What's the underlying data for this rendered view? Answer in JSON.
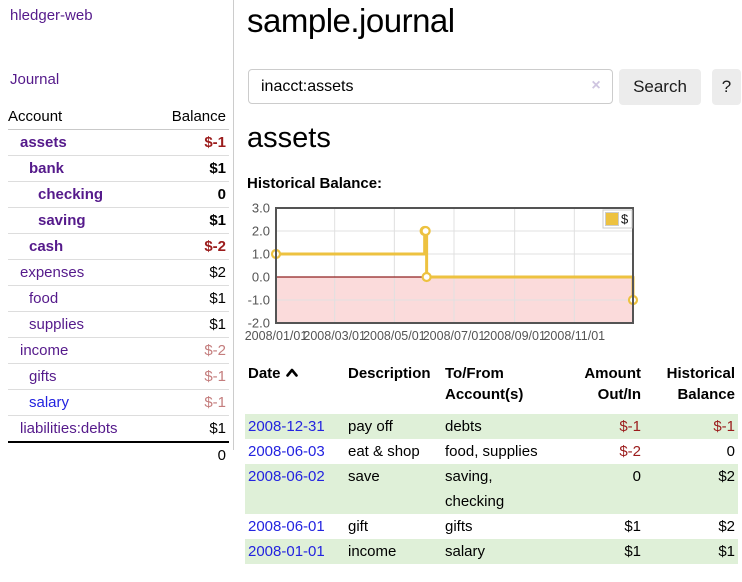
{
  "app": {
    "title": "hledger-web"
  },
  "sidebar": {
    "journal_label": "Journal",
    "table": {
      "account_header": "Account",
      "balance_header": "Balance",
      "rows": [
        {
          "name": "assets",
          "depth": 1,
          "bold": true,
          "balance": "$-1",
          "balance_style": "neg-strong"
        },
        {
          "name": "bank",
          "depth": 2,
          "bold": true,
          "balance": "$1",
          "balance_style": ""
        },
        {
          "name": "checking",
          "depth": 3,
          "bold": true,
          "balance": "0",
          "balance_style": ""
        },
        {
          "name": "saving",
          "depth": 3,
          "bold": true,
          "balance": "$1",
          "balance_style": ""
        },
        {
          "name": "cash",
          "depth": 2,
          "bold": true,
          "balance": "$-2",
          "balance_style": "neg-strong"
        },
        {
          "name": "expenses",
          "depth": 1,
          "bold": false,
          "balance": "$2",
          "balance_style": ""
        },
        {
          "name": "food",
          "depth": 2,
          "bold": false,
          "balance": "$1",
          "balance_style": ""
        },
        {
          "name": "supplies",
          "depth": 2,
          "bold": false,
          "balance": "$1",
          "balance_style": ""
        },
        {
          "name": "income",
          "depth": 1,
          "bold": false,
          "balance": "$-2",
          "balance_style": "neg-light"
        },
        {
          "name": "gifts",
          "depth": 2,
          "bold": false,
          "balance": "$-1",
          "balance_style": "neg-light"
        },
        {
          "name": "salary",
          "depth": 2,
          "bold": false,
          "blue": true,
          "balance": "$-1",
          "balance_style": "neg-light"
        },
        {
          "name": "liabilities:debts",
          "depth": 1,
          "bold": false,
          "balance": "$1",
          "balance_style": ""
        }
      ],
      "total": "0"
    }
  },
  "main": {
    "title": "sample.journal",
    "search": {
      "value": "inacct:assets",
      "clear_icon": "×",
      "button_label": "Search",
      "help_label": "?"
    },
    "account_heading": "assets"
  },
  "chart_data": {
    "type": "line",
    "title": "Historical Balance:",
    "step": true,
    "x_range": [
      "2008-01-01",
      "2008-12-31"
    ],
    "ylim": [
      -2.0,
      3.0
    ],
    "grid": true,
    "legend": {
      "position": "top-right"
    },
    "series": [
      {
        "name": "$",
        "color": "#edc240",
        "points": [
          {
            "date": "2008-01-01",
            "value": 1
          },
          {
            "date": "2008-06-01",
            "value": 2
          },
          {
            "date": "2008-06-02",
            "value": 2
          },
          {
            "date": "2008-06-03",
            "value": 0
          },
          {
            "date": "2008-12-31",
            "value": -1
          }
        ]
      }
    ],
    "y_ticks": [
      {
        "label": "3.0",
        "value": 3
      },
      {
        "label": "2.0",
        "value": 2
      },
      {
        "label": "1.0",
        "value": 1
      },
      {
        "label": "0.0",
        "value": 0
      },
      {
        "label": "-1.0",
        "value": -1
      },
      {
        "label": "-2.0",
        "value": -2
      }
    ],
    "x_ticks": [
      {
        "label": "2008/01/01",
        "date": "2008-01-01"
      },
      {
        "label": "2008/03/01",
        "date": "2008-03-01"
      },
      {
        "label": "2008/05/01",
        "date": "2008-05-01"
      },
      {
        "label": "2008/07/01",
        "date": "2008-07-01"
      },
      {
        "label": "2008/09/01",
        "date": "2008-09-01"
      },
      {
        "label": "2008/11/01",
        "date": "2008-11-01"
      }
    ],
    "colors": {
      "line": "#edc240",
      "marker_fill": "#ffffff",
      "negative_area": "#fbdbdb",
      "zero_line": "#8f2020",
      "grid": "#e0e0e0",
      "border": "#545454",
      "tick_text": "#545454",
      "legend_border": "#cccccc"
    }
  },
  "register": {
    "headers": {
      "date": "Date",
      "description": "Description",
      "accounts": "To/From Account(s)",
      "amount": "Amount Out/In",
      "balance": "Historical Balance"
    },
    "rows": [
      {
        "date": "2008-12-31",
        "description": "pay off",
        "accounts": "debts",
        "amount": "$-1",
        "amount_negative": true,
        "balance": "$-1",
        "balance_negative": true
      },
      {
        "date": "2008-06-03",
        "description": "eat & shop",
        "accounts": "food, supplies",
        "amount": "$-2",
        "amount_negative": true,
        "balance": "0",
        "balance_negative": false
      },
      {
        "date": "2008-06-02",
        "description": "save",
        "accounts": "saving, checking",
        "amount": "0",
        "amount_negative": false,
        "balance": "$2",
        "balance_negative": false
      },
      {
        "date": "2008-06-01",
        "description": "gift",
        "accounts": "gifts",
        "amount": "$1",
        "amount_negative": false,
        "balance": "$2",
        "balance_negative": false
      },
      {
        "date": "2008-01-01",
        "description": "income",
        "accounts": "salary",
        "amount": "$1",
        "amount_negative": false,
        "balance": "$1",
        "balance_negative": false
      }
    ]
  },
  "colors": {
    "link_purple": "#551a8b",
    "link_blue": "#2323e0",
    "negative_strong": "#9b1c1c",
    "negative_light": "#c47d7d",
    "row_stripe_green": "#dff0d8",
    "button_gray": "#ececec"
  }
}
